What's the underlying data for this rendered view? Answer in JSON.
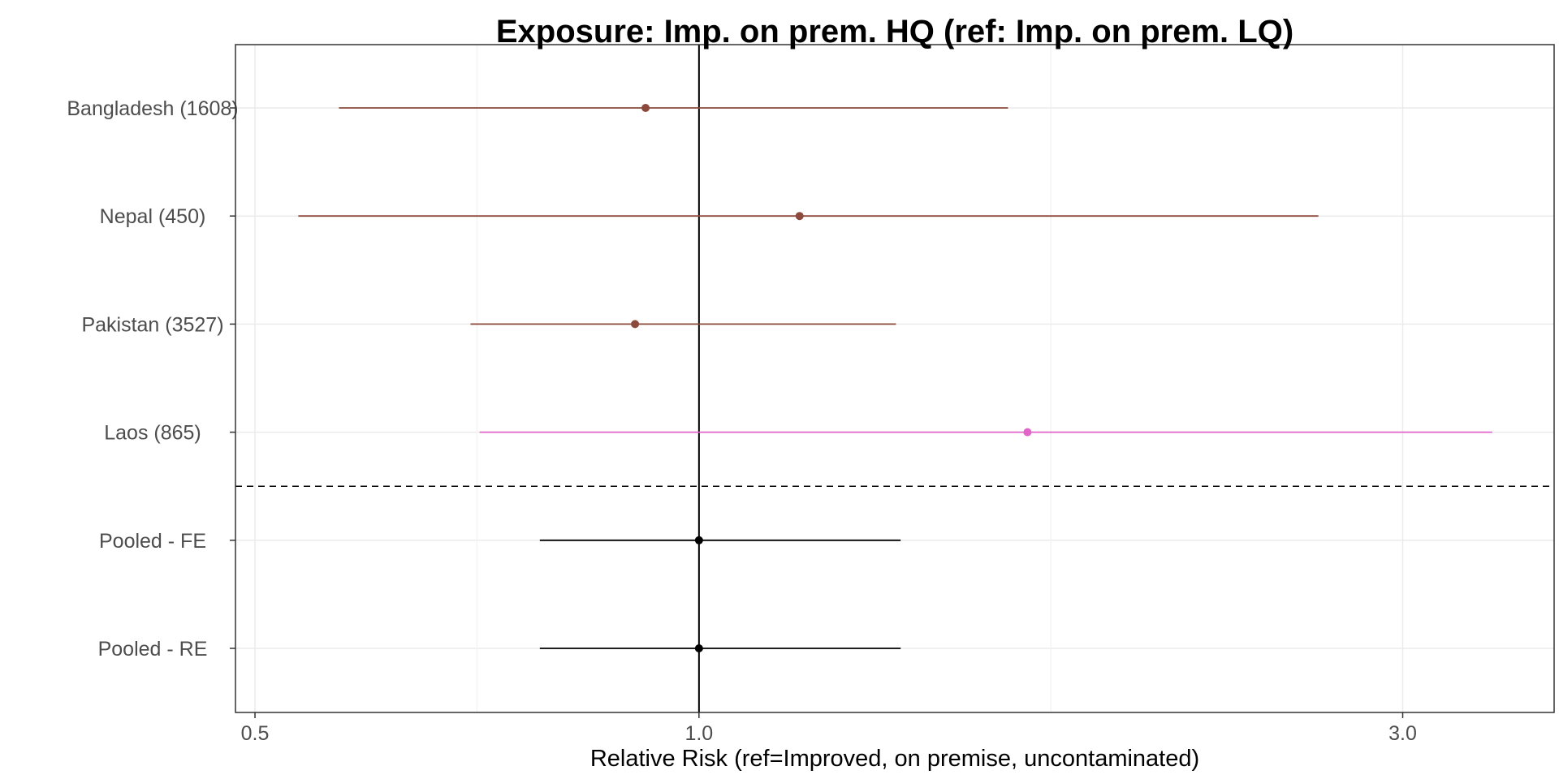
{
  "chart_data": {
    "type": "forest",
    "title": "Exposure: Imp. on prem. HQ (ref: Imp. on prem. LQ)",
    "xlabel": "Relative Risk (ref=Improved, on premise, uncontaminated)",
    "ylabel": "",
    "x_scale": "log",
    "xlim": [
      0.485,
      3.8
    ],
    "x_ticks": [
      0.5,
      1.0,
      3.0
    ],
    "x_tick_labels": [
      "0.5",
      "1.0",
      "3.0"
    ],
    "x_minor_gridlines": [
      0.707,
      1.732
    ],
    "reference_line": 1.0,
    "grid": true,
    "legend": "none",
    "rows": [
      {
        "label": "Bangladesh (1608)",
        "estimate": 0.92,
        "lower": 0.57,
        "upper": 1.62,
        "color": "#8b4a3b"
      },
      {
        "label": "Nepal (450)",
        "estimate": 1.17,
        "lower": 0.535,
        "upper": 2.63,
        "color": "#8b4a3b"
      },
      {
        "label": "Pakistan (3527)",
        "estimate": 0.905,
        "lower": 0.7,
        "upper": 1.36,
        "color": "#8b4a3b"
      },
      {
        "label": "Laos (865)",
        "estimate": 1.67,
        "lower": 0.71,
        "upper": 3.45,
        "color": "#e264c8"
      },
      {
        "label": "Pooled - FE",
        "estimate": 1.0,
        "lower": 0.78,
        "upper": 1.37,
        "color": "#000000"
      },
      {
        "label": "Pooled - RE",
        "estimate": 1.0,
        "lower": 0.78,
        "upper": 1.37,
        "color": "#000000"
      }
    ],
    "separator_after_row": 4
  }
}
